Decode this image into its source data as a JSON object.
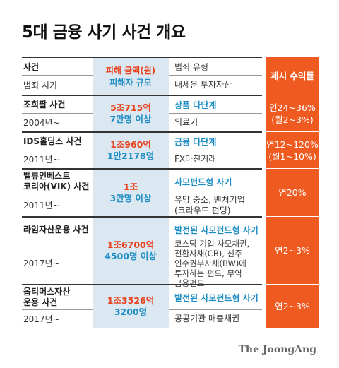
{
  "title": "5대 금융 사기 사건 개요",
  "header": {
    "col_case": "사건",
    "col_crime_time": "범죄 시기",
    "col_amount": "피해 금액(원)",
    "col_victims": "피해자 규모",
    "col_crime_type": "범죄 유형",
    "col_target": "내세운 투자자산",
    "col_return": "제시 수익률"
  },
  "cases": [
    {
      "name": "조희팔 사건",
      "year": "2004년~",
      "amount": "5조715억",
      "victims": "7만명 이상",
      "type": "상품 다단계",
      "target": "의료기",
      "return": "연24~36%\n(월2~3%)"
    },
    {
      "name": "IDS홀딩스 사건",
      "year": "2011년~",
      "amount": "1조960억",
      "victims": "1만2178명",
      "type": "금융 다단계",
      "target": "FX마진거래",
      "return": "연12~120%\n(월1~10%)"
    },
    {
      "name": "밸류인베스트\n코리아(VIK) 사건",
      "year": "2011년~",
      "amount": "1조",
      "victims": "3만명 이상",
      "type": "사모펀드형 사기",
      "target": "유망 중소, 벤처기업\n(크라우드 펀딩)",
      "return": "연20%"
    },
    {
      "name": "라임자산운용 사건",
      "year": "2017년~",
      "amount": "1조6700억",
      "victims": "4500명 이상",
      "type": "발전된 사모펀드형 사기",
      "target": "코스닥 기업 사모채권,\n전환사채(CB), 신주\n인수권부사채(BW)에\n투자하는 펀드, 무역\n금융펀드",
      "return": "연2~3%"
    },
    {
      "name": "옵티머스자산\n운용 사건",
      "year": "2017년~",
      "amount": "1조3526억",
      "victims": "3200명",
      "type": "발전된 사모펀드형 사기",
      "target": "공공기관 매출채권",
      "return": "연2~3%"
    }
  ],
  "brand": "The JoongAng",
  "colors": {
    "orange": "#ef5a21",
    "blue_band": "#dbe7f1",
    "blue_text": "#1f8ec4",
    "red_text": "#e8421e"
  }
}
